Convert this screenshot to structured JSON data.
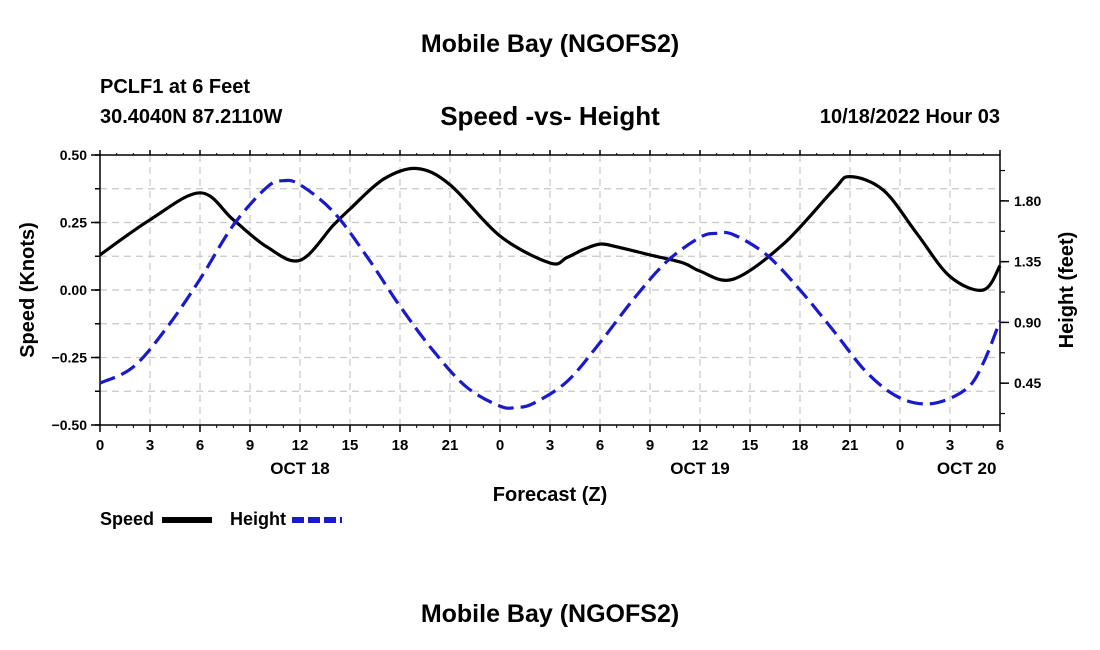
{
  "header": {
    "title": "Mobile Bay (NGOFS2)",
    "station": "PCLF1 at 6 Feet",
    "coords": "30.4040N  87.2110W",
    "subtitle": "Speed -vs- Height",
    "datetime": "10/18/2022 Hour 03"
  },
  "footer": {
    "title": "Mobile Bay (NGOFS2)"
  },
  "chart_data": {
    "type": "line",
    "title": "Speed -vs- Height",
    "xlabel": "Forecast (Z)",
    "ylabel_left": "Speed (Knots)",
    "ylabel_right": "Height (feet)",
    "x_tick_labels": [
      "0",
      "3",
      "6",
      "9",
      "12",
      "15",
      "18",
      "21",
      "0",
      "3",
      "6",
      "9",
      "12",
      "15",
      "18",
      "21",
      "0",
      "3",
      "6"
    ],
    "day_labels": [
      {
        "hour": 12,
        "label": "OCT 18"
      },
      {
        "hour": 36,
        "label": "OCT 19"
      },
      {
        "hour": 52,
        "label": "OCT 20"
      }
    ],
    "xlim": [
      0,
      54
    ],
    "ylim_left": [
      -0.5,
      0.5
    ],
    "yticks_left": [
      -0.5,
      -0.25,
      0.0,
      0.25,
      0.5
    ],
    "ytick_labels_left": [
      "−0.50",
      "−0.25",
      "0.00",
      "0.25",
      "0.50"
    ],
    "ylim_right": [
      0.14,
      2.14
    ],
    "yticks_right": [
      0.45,
      0.9,
      1.35,
      1.8
    ],
    "ytick_labels_right": [
      "0.45",
      "0.90",
      "1.35",
      "1.80"
    ],
    "grid": true,
    "legend_position": "bottom-left",
    "series": [
      {
        "name": "Speed",
        "axis": "left",
        "color": "#000000",
        "dash": "solid",
        "x": [
          0,
          3,
          6,
          8,
          10,
          12,
          14,
          15,
          17,
          19,
          21,
          24,
          27,
          28,
          29,
          30,
          31,
          33,
          35,
          36,
          38,
          41,
          44,
          45,
          47,
          49,
          51,
          53,
          54
        ],
        "y": [
          0.13,
          0.26,
          0.36,
          0.26,
          0.16,
          0.11,
          0.24,
          0.3,
          0.41,
          0.45,
          0.39,
          0.2,
          0.1,
          0.12,
          0.15,
          0.17,
          0.16,
          0.13,
          0.1,
          0.07,
          0.04,
          0.17,
          0.37,
          0.42,
          0.37,
          0.21,
          0.05,
          0.0,
          0.09
        ]
      },
      {
        "name": "Height",
        "axis": "right",
        "color": "#1a1acc",
        "dash": "dashed",
        "x": [
          0,
          2,
          4,
          6,
          8,
          10,
          11,
          12,
          14,
          16,
          18,
          20,
          22,
          24,
          25,
          26,
          28,
          30,
          32,
          34,
          36,
          37,
          38,
          40,
          42,
          44,
          46,
          48,
          50,
          52,
          53,
          54
        ],
        "y": [
          0.45,
          0.57,
          0.86,
          1.22,
          1.62,
          1.9,
          1.95,
          1.92,
          1.72,
          1.39,
          1.02,
          0.69,
          0.42,
          0.28,
          0.27,
          0.3,
          0.46,
          0.75,
          1.07,
          1.35,
          1.53,
          1.56,
          1.55,
          1.4,
          1.14,
          0.84,
          0.53,
          0.34,
          0.3,
          0.41,
          0.6,
          0.91
        ]
      }
    ]
  }
}
